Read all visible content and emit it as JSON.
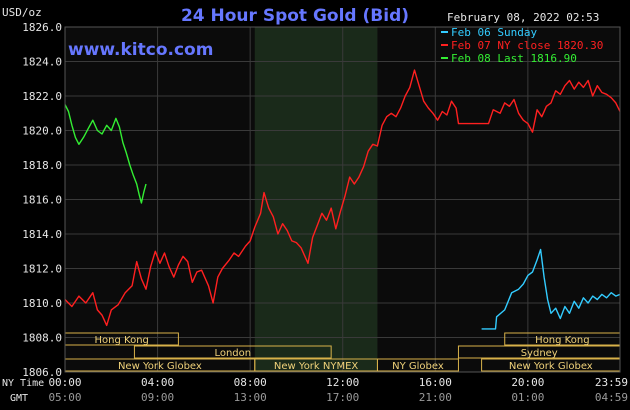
{
  "title": "24 Hour Spot Gold (Bid)",
  "watermark": "www.kitco.com",
  "unit_label": "USD/oz",
  "timestamp": "February 08, 2022 02:53",
  "legend": [
    {
      "text": "Feb 06 Sunday",
      "color": "#33ccff"
    },
    {
      "text": "Feb 07 NY close 1820.30",
      "color": "#ff2020"
    },
    {
      "text": "Feb 08 Last 1816.90",
      "color": "#33ee33"
    }
  ],
  "colors": {
    "background": "#000000",
    "plot_background": "#0b0b0b",
    "grid": "#3a3a3a",
    "nymex_shade": "#1a2a1a",
    "title": "#6677ff",
    "text": "#e6e6e6",
    "watermark": "#6677ff"
  },
  "axis": {
    "row1_name": "NY Time",
    "row2_name": "GMT",
    "ny_ticks": [
      "00:00",
      "04:00",
      "08:00",
      "12:00",
      "16:00",
      "20:00",
      "23:59"
    ],
    "gmt_ticks": [
      "05:00",
      "09:00",
      "13:00",
      "17:00",
      "21:00",
      "01:00",
      "04:59"
    ]
  },
  "chart_data": {
    "type": "line",
    "x_unit": "hours since 00:00 NY time",
    "xlim": [
      0,
      23.98
    ],
    "ylim": [
      1806,
      1826
    ],
    "y_ticks": [
      1806,
      1808,
      1810,
      1812,
      1814,
      1816,
      1818,
      1820,
      1822,
      1824,
      1826
    ],
    "grid": true,
    "legend_position": "top-right",
    "nymex_session_hours": [
      8.2,
      13.5
    ],
    "series": [
      {
        "name": "Feb 06 Sunday",
        "color": "#33ccff",
        "points": [
          [
            18.0,
            1808.5
          ],
          [
            18.6,
            1808.5
          ],
          [
            18.65,
            1809.2
          ],
          [
            19.0,
            1809.6
          ],
          [
            19.3,
            1810.6
          ],
          [
            19.6,
            1810.8
          ],
          [
            19.8,
            1811.1
          ],
          [
            20.0,
            1811.6
          ],
          [
            20.2,
            1811.8
          ],
          [
            20.4,
            1812.5
          ],
          [
            20.55,
            1813.1
          ],
          [
            20.7,
            1811.5
          ],
          [
            20.85,
            1810.2
          ],
          [
            21.0,
            1809.4
          ],
          [
            21.2,
            1809.7
          ],
          [
            21.4,
            1809.1
          ],
          [
            21.6,
            1809.8
          ],
          [
            21.8,
            1809.4
          ],
          [
            22.0,
            1810.1
          ],
          [
            22.2,
            1809.7
          ],
          [
            22.4,
            1810.3
          ],
          [
            22.6,
            1810.0
          ],
          [
            22.8,
            1810.4
          ],
          [
            23.0,
            1810.2
          ],
          [
            23.2,
            1810.5
          ],
          [
            23.4,
            1810.3
          ],
          [
            23.6,
            1810.6
          ],
          [
            23.8,
            1810.4
          ],
          [
            23.98,
            1810.5
          ]
        ]
      },
      {
        "name": "Feb 07 NY close 1820.30",
        "color": "#ff2020",
        "points": [
          [
            0.0,
            1810.2
          ],
          [
            0.3,
            1809.8
          ],
          [
            0.6,
            1810.4
          ],
          [
            0.9,
            1810.0
          ],
          [
            1.2,
            1810.6
          ],
          [
            1.4,
            1809.6
          ],
          [
            1.6,
            1809.3
          ],
          [
            1.8,
            1808.7
          ],
          [
            2.0,
            1809.6
          ],
          [
            2.3,
            1809.9
          ],
          [
            2.6,
            1810.6
          ],
          [
            2.9,
            1811.0
          ],
          [
            3.1,
            1812.4
          ],
          [
            3.3,
            1811.4
          ],
          [
            3.5,
            1810.8
          ],
          [
            3.7,
            1812.1
          ],
          [
            3.9,
            1813.0
          ],
          [
            4.1,
            1812.3
          ],
          [
            4.3,
            1812.9
          ],
          [
            4.5,
            1812.1
          ],
          [
            4.7,
            1811.5
          ],
          [
            4.9,
            1812.2
          ],
          [
            5.1,
            1812.7
          ],
          [
            5.3,
            1812.4
          ],
          [
            5.5,
            1811.2
          ],
          [
            5.7,
            1811.8
          ],
          [
            5.9,
            1811.9
          ],
          [
            6.2,
            1811.0
          ],
          [
            6.4,
            1810.0
          ],
          [
            6.6,
            1811.5
          ],
          [
            6.8,
            1812.0
          ],
          [
            7.1,
            1812.5
          ],
          [
            7.3,
            1812.9
          ],
          [
            7.5,
            1812.7
          ],
          [
            7.8,
            1813.3
          ],
          [
            8.0,
            1813.6
          ],
          [
            8.2,
            1814.4
          ],
          [
            8.45,
            1815.2
          ],
          [
            8.6,
            1816.4
          ],
          [
            8.8,
            1815.5
          ],
          [
            9.0,
            1815.0
          ],
          [
            9.2,
            1814.0
          ],
          [
            9.4,
            1814.6
          ],
          [
            9.6,
            1814.2
          ],
          [
            9.8,
            1813.6
          ],
          [
            10.0,
            1813.5
          ],
          [
            10.2,
            1813.2
          ],
          [
            10.4,
            1812.6
          ],
          [
            10.5,
            1812.3
          ],
          [
            10.7,
            1813.8
          ],
          [
            10.9,
            1814.5
          ],
          [
            11.1,
            1815.2
          ],
          [
            11.3,
            1814.8
          ],
          [
            11.5,
            1815.5
          ],
          [
            11.7,
            1814.3
          ],
          [
            11.9,
            1815.3
          ],
          [
            12.1,
            1816.2
          ],
          [
            12.3,
            1817.3
          ],
          [
            12.5,
            1816.9
          ],
          [
            12.7,
            1817.3
          ],
          [
            12.9,
            1817.9
          ],
          [
            13.1,
            1818.8
          ],
          [
            13.3,
            1819.2
          ],
          [
            13.5,
            1819.1
          ],
          [
            13.7,
            1820.3
          ],
          [
            13.9,
            1820.8
          ],
          [
            14.1,
            1821.0
          ],
          [
            14.3,
            1820.8
          ],
          [
            14.5,
            1821.3
          ],
          [
            14.7,
            1822.0
          ],
          [
            14.9,
            1822.5
          ],
          [
            15.1,
            1823.5
          ],
          [
            15.3,
            1822.6
          ],
          [
            15.5,
            1821.7
          ],
          [
            15.7,
            1821.3
          ],
          [
            15.9,
            1821.0
          ],
          [
            16.1,
            1820.6
          ],
          [
            16.3,
            1821.1
          ],
          [
            16.5,
            1820.9
          ],
          [
            16.7,
            1821.7
          ],
          [
            16.9,
            1821.3
          ],
          [
            17.0,
            1820.4
          ],
          [
            18.0,
            1820.4
          ],
          [
            18.3,
            1820.4
          ],
          [
            18.5,
            1821.2
          ],
          [
            18.8,
            1821.0
          ],
          [
            19.0,
            1821.6
          ],
          [
            19.2,
            1821.4
          ],
          [
            19.4,
            1821.8
          ],
          [
            19.6,
            1821.0
          ],
          [
            19.8,
            1820.6
          ],
          [
            20.0,
            1820.4
          ],
          [
            20.2,
            1819.9
          ],
          [
            20.4,
            1821.2
          ],
          [
            20.6,
            1820.8
          ],
          [
            20.8,
            1821.4
          ],
          [
            21.0,
            1821.6
          ],
          [
            21.2,
            1822.3
          ],
          [
            21.4,
            1822.1
          ],
          [
            21.6,
            1822.6
          ],
          [
            21.8,
            1822.9
          ],
          [
            22.0,
            1822.4
          ],
          [
            22.2,
            1822.8
          ],
          [
            22.4,
            1822.5
          ],
          [
            22.6,
            1822.9
          ],
          [
            22.8,
            1822.0
          ],
          [
            23.0,
            1822.6
          ],
          [
            23.2,
            1822.2
          ],
          [
            23.4,
            1822.1
          ],
          [
            23.6,
            1821.9
          ],
          [
            23.8,
            1821.6
          ],
          [
            23.98,
            1821.1
          ]
        ]
      },
      {
        "name": "Feb 08 Last 1816.90",
        "color": "#33ee33",
        "points": [
          [
            0.0,
            1821.5
          ],
          [
            0.15,
            1821.1
          ],
          [
            0.3,
            1820.3
          ],
          [
            0.45,
            1819.6
          ],
          [
            0.6,
            1819.2
          ],
          [
            0.8,
            1819.6
          ],
          [
            1.0,
            1820.1
          ],
          [
            1.2,
            1820.6
          ],
          [
            1.4,
            1820.0
          ],
          [
            1.6,
            1819.8
          ],
          [
            1.8,
            1820.3
          ],
          [
            2.0,
            1820.0
          ],
          [
            2.2,
            1820.7
          ],
          [
            2.35,
            1820.2
          ],
          [
            2.5,
            1819.3
          ],
          [
            2.65,
            1818.7
          ],
          [
            2.8,
            1818.0
          ],
          [
            2.95,
            1817.4
          ],
          [
            3.1,
            1816.9
          ],
          [
            3.2,
            1816.3
          ],
          [
            3.3,
            1815.8
          ],
          [
            3.4,
            1816.4
          ],
          [
            3.5,
            1816.9
          ]
        ]
      }
    ]
  },
  "sessions": [
    {
      "name": "Hong Kong",
      "start": 0.0,
      "end": 4.9,
      "row": 0
    },
    {
      "name": "Hong Kong",
      "start": 19.0,
      "end": 23.98,
      "row": 0
    },
    {
      "name": "London",
      "start": 3.0,
      "end": 11.5,
      "row": 1
    },
    {
      "name": "Sydney",
      "start": 17.0,
      "end": 23.98,
      "row": 1
    },
    {
      "name": "New York Globex",
      "start": 0.0,
      "end": 8.2,
      "row": 2
    },
    {
      "name": "New York NYMEX",
      "start": 8.2,
      "end": 13.5,
      "row": 2
    },
    {
      "name": "NY Globex",
      "start": 13.5,
      "end": 17.0,
      "row": 2
    },
    {
      "name": "New York Globex",
      "start": 18.0,
      "end": 23.98,
      "row": 2
    }
  ]
}
